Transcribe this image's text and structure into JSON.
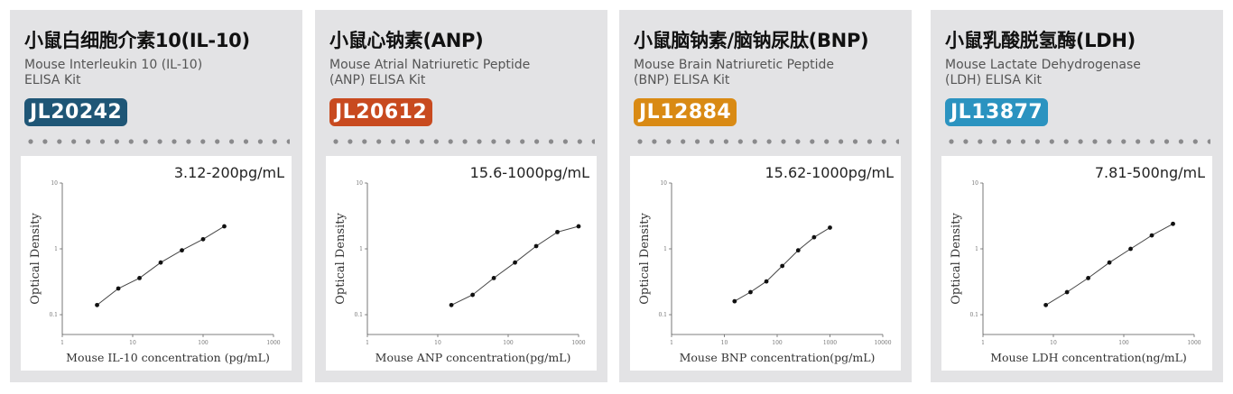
{
  "cards": [
    {
      "title": "小鼠白细胞介素10(IL-10)",
      "subtitle": "Mouse Interleukin 10 (IL-10)\nELISA Kit",
      "code": "JL20242",
      "code_color": "#1f5676",
      "range": "3.12-200pg/mL"
    },
    {
      "title": "小鼠心钠素(ANP)",
      "subtitle": "Mouse Atrial Natriuretic Peptide\n(ANP) ELISA Kit",
      "code": "JL20612",
      "code_color": "#c84a1f",
      "range": "15.6-1000pg/mL"
    },
    {
      "title": "小鼠脑钠素/脑钠尿肽(BNP)",
      "subtitle": "Mouse Brain Natriuretic Peptide\n(BNP) ELISA Kit",
      "code": "JL12884",
      "code_color": "#d98a14",
      "range": "15.62-1000pg/mL"
    },
    {
      "title": "小鼠乳酸脱氢酶(LDH)",
      "subtitle": "Mouse Lactate Dehydrogenase\n(LDH) ELISA Kit",
      "code": "JL13877",
      "code_color": "#2b93c0",
      "range": "7.81-500ng/mL"
    }
  ],
  "chart_data": [
    {
      "type": "line",
      "ylabel": "Optical Density",
      "xlabel": "Mouse IL-10 concentration (pg/mL)",
      "xscale": "log",
      "yscale": "log",
      "xlim": [
        1,
        1000
      ],
      "ylim": [
        0.05,
        10
      ],
      "xticks": [
        "1",
        "10",
        "100",
        "1000"
      ],
      "yticks": [
        "0.1",
        "1",
        "10"
      ],
      "x": [
        3.12,
        6.25,
        12.5,
        25,
        50,
        100,
        200
      ],
      "y": [
        0.14,
        0.25,
        0.36,
        0.62,
        0.95,
        1.4,
        2.2
      ]
    },
    {
      "type": "line",
      "ylabel": "Optical Density",
      "xlabel": "Mouse ANP concentration(pg/mL)",
      "xscale": "log",
      "yscale": "log",
      "xlim": [
        1,
        1000
      ],
      "ylim": [
        0.05,
        10
      ],
      "xticks": [
        "1",
        "10",
        "100",
        "1000"
      ],
      "yticks": [
        "0.1",
        "1",
        "10"
      ],
      "x": [
        15.6,
        31.25,
        62.5,
        125,
        250,
        500,
        1000
      ],
      "y": [
        0.14,
        0.2,
        0.36,
        0.62,
        1.1,
        1.8,
        2.2
      ]
    },
    {
      "type": "line",
      "ylabel": "Optical Density",
      "xlabel": "Mouse BNP concentration(pg/mL)",
      "xscale": "log",
      "yscale": "log",
      "xlim": [
        1,
        10000
      ],
      "ylim": [
        0.05,
        10
      ],
      "xticks": [
        "1",
        "10",
        "100",
        "1000",
        "10000"
      ],
      "yticks": [
        "0.1",
        "1",
        "10"
      ],
      "x": [
        15.62,
        31.25,
        62.5,
        125,
        250,
        500,
        1000
      ],
      "y": [
        0.16,
        0.22,
        0.32,
        0.55,
        0.95,
        1.5,
        2.1
      ]
    },
    {
      "type": "line",
      "ylabel": "Optical Density",
      "xlabel": "Mouse LDH concentration(ng/mL)",
      "xscale": "log",
      "yscale": "log",
      "xlim": [
        1,
        1000
      ],
      "ylim": [
        0.05,
        10
      ],
      "xticks": [
        "1",
        "10",
        "100",
        "1000"
      ],
      "yticks": [
        "0.1",
        "1",
        "10"
      ],
      "x": [
        7.81,
        15.62,
        31.25,
        62.5,
        125,
        250,
        500
      ],
      "y": [
        0.14,
        0.22,
        0.36,
        0.62,
        1.0,
        1.6,
        2.4
      ]
    }
  ]
}
